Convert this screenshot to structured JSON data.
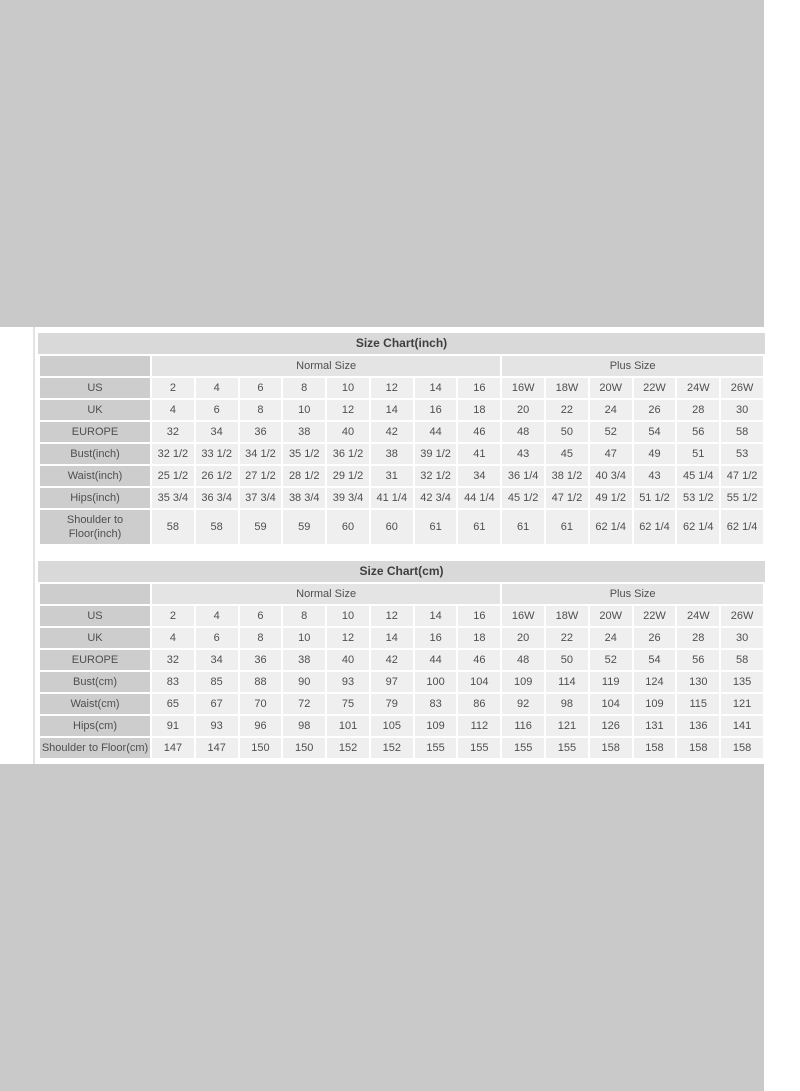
{
  "colors": {
    "page_background": "#ffffff",
    "gray_band": "#c9c9c9",
    "title_bar": "#d9d9d9",
    "label_cell": "#cdcdcd",
    "group_header_cell": "#e4e4e4",
    "data_cell": "#efefef",
    "text": "#4f4f4f"
  },
  "chart_data": [
    {
      "type": "table",
      "title": "Size Chart(inch)",
      "group_headers": [
        {
          "label": "Normal Size",
          "span": 8
        },
        {
          "label": "Plus Size",
          "span": 6
        }
      ],
      "rows": [
        {
          "label": "US",
          "values": [
            "2",
            "4",
            "6",
            "8",
            "10",
            "12",
            "14",
            "16",
            "16W",
            "18W",
            "20W",
            "22W",
            "24W",
            "26W"
          ]
        },
        {
          "label": "UK",
          "values": [
            "4",
            "6",
            "8",
            "10",
            "12",
            "14",
            "16",
            "18",
            "20",
            "22",
            "24",
            "26",
            "28",
            "30"
          ]
        },
        {
          "label": "EUROPE",
          "values": [
            "32",
            "34",
            "36",
            "38",
            "40",
            "42",
            "44",
            "46",
            "48",
            "50",
            "52",
            "54",
            "56",
            "58"
          ]
        },
        {
          "label": "Bust(inch)",
          "values": [
            "32 1/2",
            "33 1/2",
            "34 1/2",
            "35 1/2",
            "36 1/2",
            "38",
            "39 1/2",
            "41",
            "43",
            "45",
            "47",
            "49",
            "51",
            "53"
          ]
        },
        {
          "label": "Waist(inch)",
          "values": [
            "25 1/2",
            "26 1/2",
            "27 1/2",
            "28 1/2",
            "29 1/2",
            "31",
            "32 1/2",
            "34",
            "36 1/4",
            "38 1/2",
            "40 3/4",
            "43",
            "45 1/4",
            "47 1/2"
          ]
        },
        {
          "label": "Hips(inch)",
          "values": [
            "35 3/4",
            "36 3/4",
            "37 3/4",
            "38 3/4",
            "39 3/4",
            "41 1/4",
            "42 3/4",
            "44 1/4",
            "45 1/2",
            "47 1/2",
            "49 1/2",
            "51 1/2",
            "53 1/2",
            "55 1/2"
          ]
        },
        {
          "label": "Shoulder to Floor(inch)",
          "values": [
            "58",
            "58",
            "59",
            "59",
            "60",
            "60",
            "61",
            "61",
            "61",
            "61",
            "62 1/4",
            "62 1/4",
            "62 1/4",
            "62 1/4"
          ]
        }
      ]
    },
    {
      "type": "table",
      "title": "Size Chart(cm)",
      "group_headers": [
        {
          "label": "Normal Size",
          "span": 8
        },
        {
          "label": "Plus Size",
          "span": 6
        }
      ],
      "rows": [
        {
          "label": "US",
          "values": [
            "2",
            "4",
            "6",
            "8",
            "10",
            "12",
            "14",
            "16",
            "16W",
            "18W",
            "20W",
            "22W",
            "24W",
            "26W"
          ]
        },
        {
          "label": "UK",
          "values": [
            "4",
            "6",
            "8",
            "10",
            "12",
            "14",
            "16",
            "18",
            "20",
            "22",
            "24",
            "26",
            "28",
            "30"
          ]
        },
        {
          "label": "EUROPE",
          "values": [
            "32",
            "34",
            "36",
            "38",
            "40",
            "42",
            "44",
            "46",
            "48",
            "50",
            "52",
            "54",
            "56",
            "58"
          ]
        },
        {
          "label": "Bust(cm)",
          "values": [
            "83",
            "85",
            "88",
            "90",
            "93",
            "97",
            "100",
            "104",
            "109",
            "114",
            "119",
            "124",
            "130",
            "135"
          ]
        },
        {
          "label": "Waist(cm)",
          "values": [
            "65",
            "67",
            "70",
            "72",
            "75",
            "79",
            "83",
            "86",
            "92",
            "98",
            "104",
            "109",
            "115",
            "121"
          ]
        },
        {
          "label": "Hips(cm)",
          "values": [
            "91",
            "93",
            "96",
            "98",
            "101",
            "105",
            "109",
            "112",
            "116",
            "121",
            "126",
            "131",
            "136",
            "141"
          ]
        },
        {
          "label": "Shoulder to Floor(cm)",
          "values": [
            "147",
            "147",
            "150",
            "150",
            "152",
            "152",
            "155",
            "155",
            "155",
            "155",
            "158",
            "158",
            "158",
            "158"
          ]
        }
      ]
    }
  ]
}
